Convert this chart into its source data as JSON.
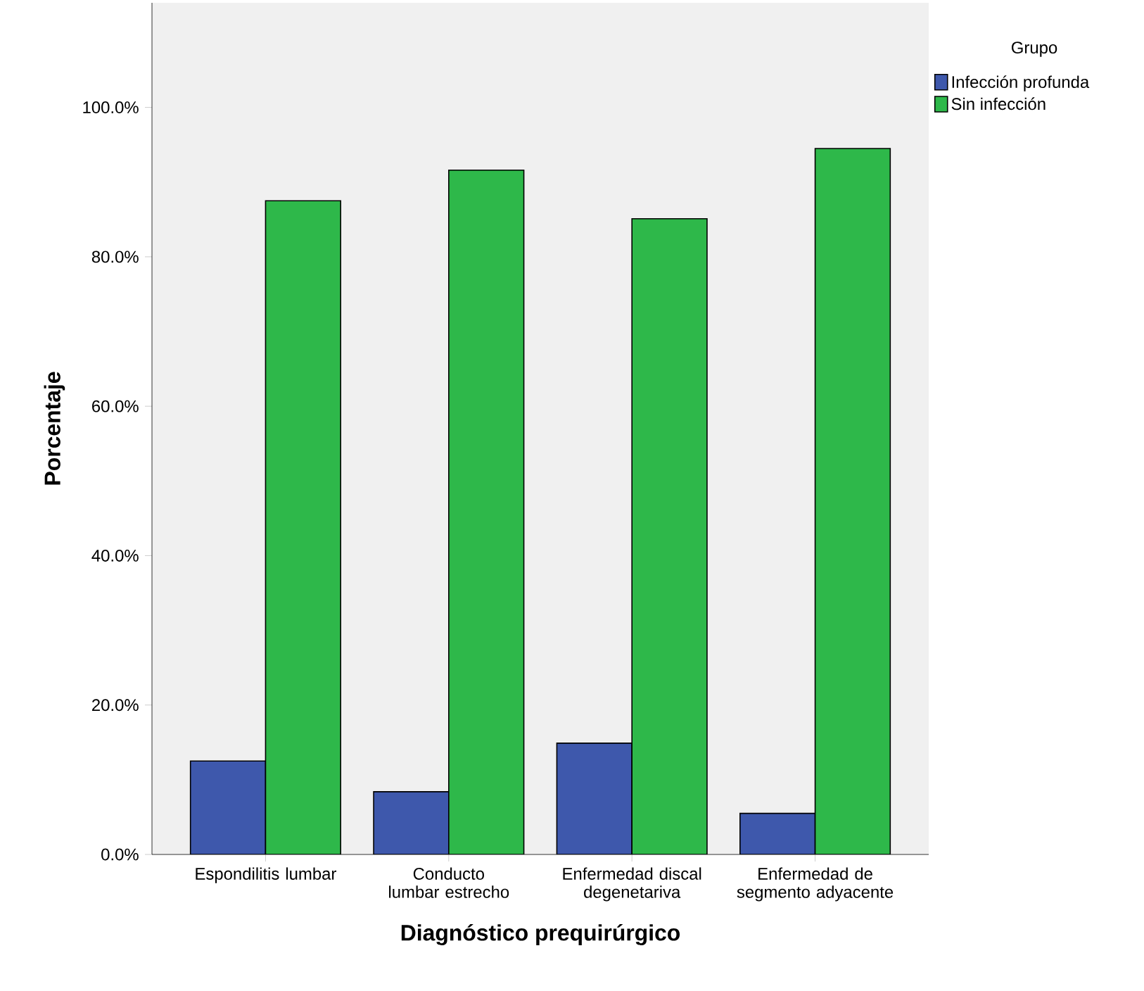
{
  "chart_data": {
    "type": "bar",
    "categories": [
      "Espondilitis lumbar",
      "Conducto lumbar estrecho",
      "Enfermedad discal degenetariva",
      "Enfermedad de segmento adyacente"
    ],
    "series": [
      {
        "name": "Infección profunda",
        "color": "#3e58ac",
        "values": [
          12.5,
          8.4,
          14.9,
          5.5
        ]
      },
      {
        "name": "Sin infección",
        "color": "#2eb84a",
        "values": [
          87.5,
          91.6,
          85.1,
          94.5
        ]
      }
    ],
    "xlabel": "Diagnóstico prequirúrgico",
    "ylabel": "Porcentaje",
    "legend_title": "Grupo",
    "legend": "top right",
    "ylim": [
      0,
      114
    ],
    "yticks": [
      {
        "value": 0,
        "label": "0.0%"
      },
      {
        "value": 20,
        "label": "20.0%"
      },
      {
        "value": 40,
        "label": "40.0%"
      },
      {
        "value": 60,
        "label": "60.0%"
      },
      {
        "value": 80,
        "label": "80.0%"
      },
      {
        "value": 100,
        "label": "100.0%"
      }
    ],
    "grid": false
  }
}
